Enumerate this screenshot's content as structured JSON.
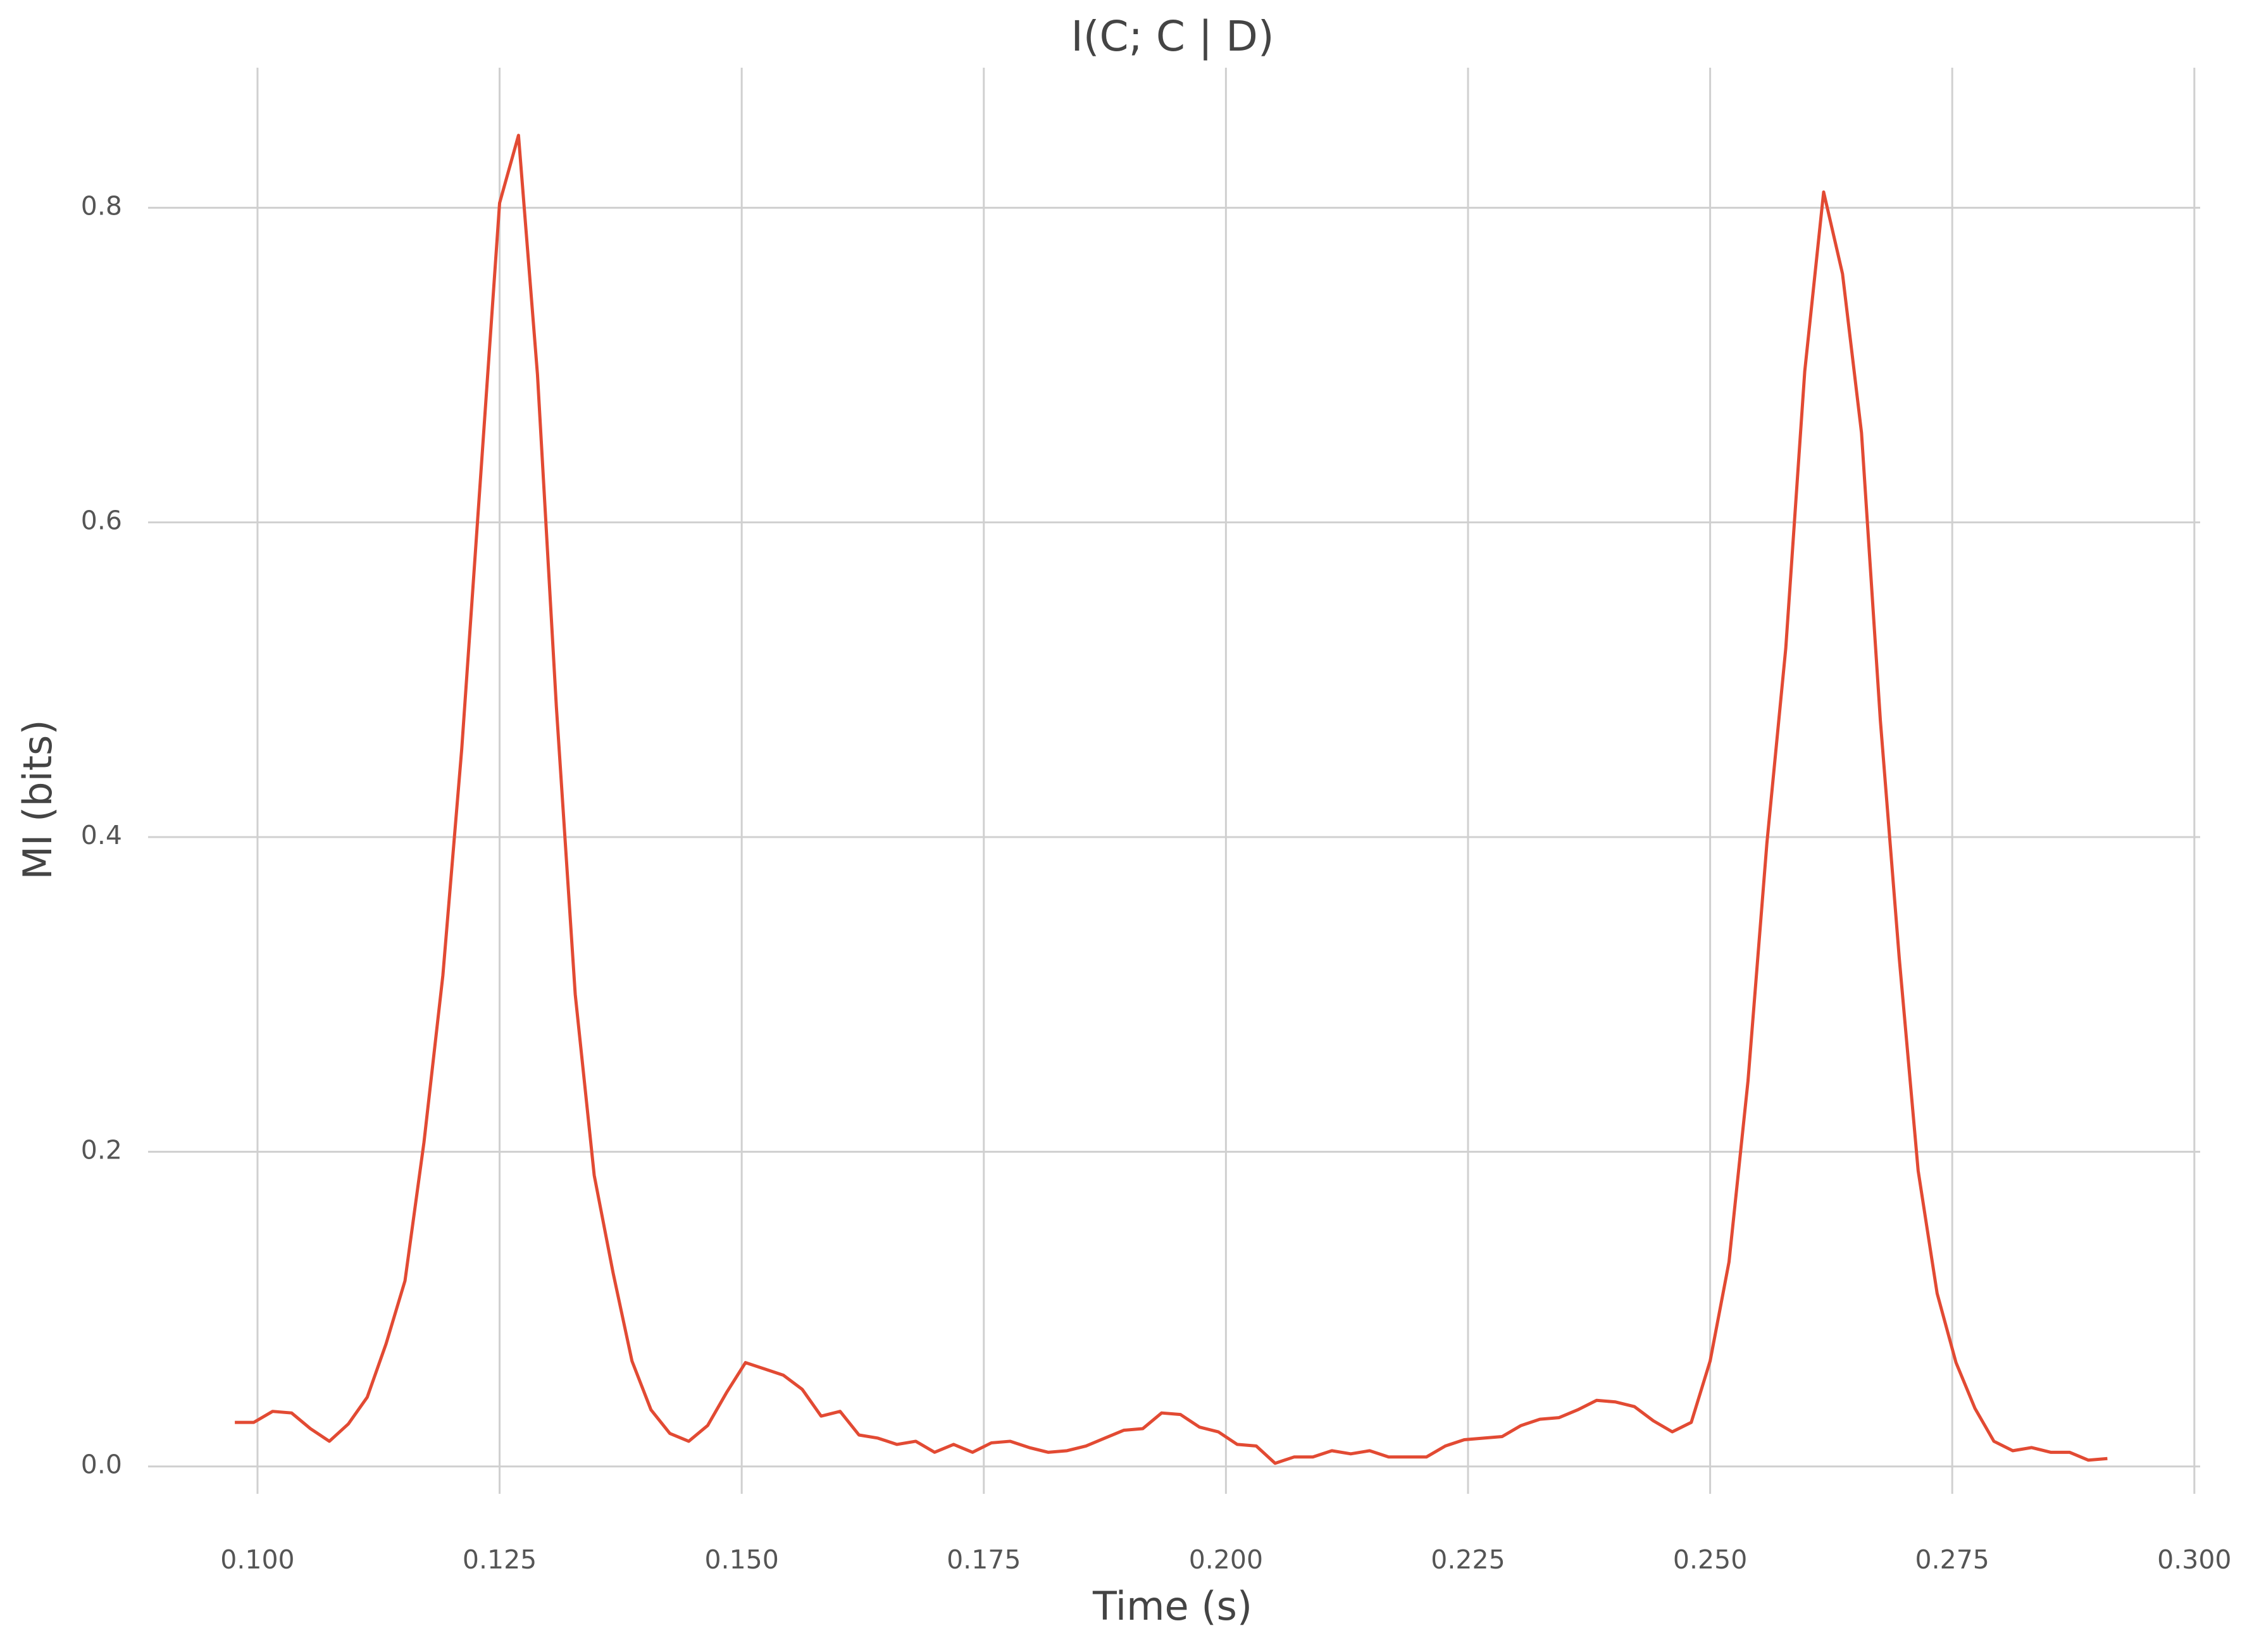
{
  "chart_data": {
    "type": "line",
    "title": "I(C; C | D)",
    "x_label": "Time (s)",
    "y_label": "MI (bits)",
    "x": [
      0.09766,
      0.09961,
      0.10156,
      0.10352,
      0.10547,
      0.10742,
      0.10938,
      0.11133,
      0.11328,
      0.11523,
      0.11719,
      0.11914,
      0.12109,
      0.12305,
      0.125,
      0.12695,
      0.12891,
      0.13086,
      0.13281,
      0.13477,
      0.13672,
      0.13867,
      0.14063,
      0.14258,
      0.14453,
      0.14648,
      0.14844,
      0.15039,
      0.15234,
      0.1543,
      0.15625,
      0.1582,
      0.16016,
      0.16211,
      0.16406,
      0.16602,
      0.16797,
      0.16992,
      0.17188,
      0.17383,
      0.17578,
      0.17773,
      0.17969,
      0.18164,
      0.18359,
      0.18555,
      0.1875,
      0.18945,
      0.19141,
      0.19336,
      0.19531,
      0.19727,
      0.19922,
      0.20117,
      0.20313,
      0.20508,
      0.20703,
      0.20898,
      0.21094,
      0.21289,
      0.21484,
      0.2168,
      0.21875,
      0.2207,
      0.22266,
      0.22461,
      0.22656,
      0.22852,
      0.23047,
      0.23242,
      0.23438,
      0.23633,
      0.23828,
      0.24023,
      0.24219,
      0.24414,
      0.24609,
      0.24805,
      0.25,
      0.25195,
      0.25391,
      0.25586,
      0.25781,
      0.25977,
      0.26172,
      0.26367,
      0.26563,
      0.26758,
      0.26953,
      0.27148,
      0.27344,
      0.27539,
      0.27734,
      0.2793,
      0.28125,
      0.2832,
      0.28516,
      0.28711,
      0.28906,
      0.29102
    ],
    "values": [
      0.028,
      0.028,
      0.035,
      0.034,
      0.024,
      0.016,
      0.027,
      0.044,
      0.078,
      0.118,
      0.206,
      0.312,
      0.456,
      0.63,
      0.803,
      0.846,
      0.694,
      0.483,
      0.3,
      0.185,
      0.123,
      0.067,
      0.036,
      0.021,
      0.016,
      0.026,
      0.047,
      0.066,
      0.062,
      0.058,
      0.049,
      0.032,
      0.035,
      0.02,
      0.018,
      0.014,
      0.016,
      0.009,
      0.014,
      0.009,
      0.015,
      0.016,
      0.012,
      0.009,
      0.01,
      0.013,
      0.018,
      0.023,
      0.024,
      0.034,
      0.033,
      0.025,
      0.022,
      0.014,
      0.013,
      0.002,
      0.006,
      0.006,
      0.01,
      0.008,
      0.01,
      0.006,
      0.006,
      0.006,
      0.013,
      0.017,
      0.018,
      0.019,
      0.026,
      0.03,
      0.031,
      0.036,
      0.042,
      0.041,
      0.038,
      0.029,
      0.022,
      0.028,
      0.067,
      0.13,
      0.245,
      0.396,
      0.52,
      0.696,
      0.81,
      0.758,
      0.657,
      0.474,
      0.323,
      0.188,
      0.11,
      0.066,
      0.037,
      0.016,
      0.01,
      0.012,
      0.009,
      0.009,
      0.004,
      0.005
    ],
    "color": "#e24a33",
    "xlim": [
      0.0887,
      0.3006
    ],
    "ylim": [
      -0.0174,
      0.889
    ],
    "xticks": [
      {
        "value": 0.1,
        "label": "0.100"
      },
      {
        "value": 0.125,
        "label": "0.125"
      },
      {
        "value": 0.15,
        "label": "0.150"
      },
      {
        "value": 0.175,
        "label": "0.175"
      },
      {
        "value": 0.2,
        "label": "0.200"
      },
      {
        "value": 0.225,
        "label": "0.225"
      },
      {
        "value": 0.25,
        "label": "0.250"
      },
      {
        "value": 0.275,
        "label": "0.275"
      },
      {
        "value": 0.3,
        "label": "0.300"
      }
    ],
    "yticks": [
      {
        "value": 0,
        "label": "0.0"
      },
      0.2,
      0.4,
      0.6,
      0.8
    ],
    "grid": true
  }
}
